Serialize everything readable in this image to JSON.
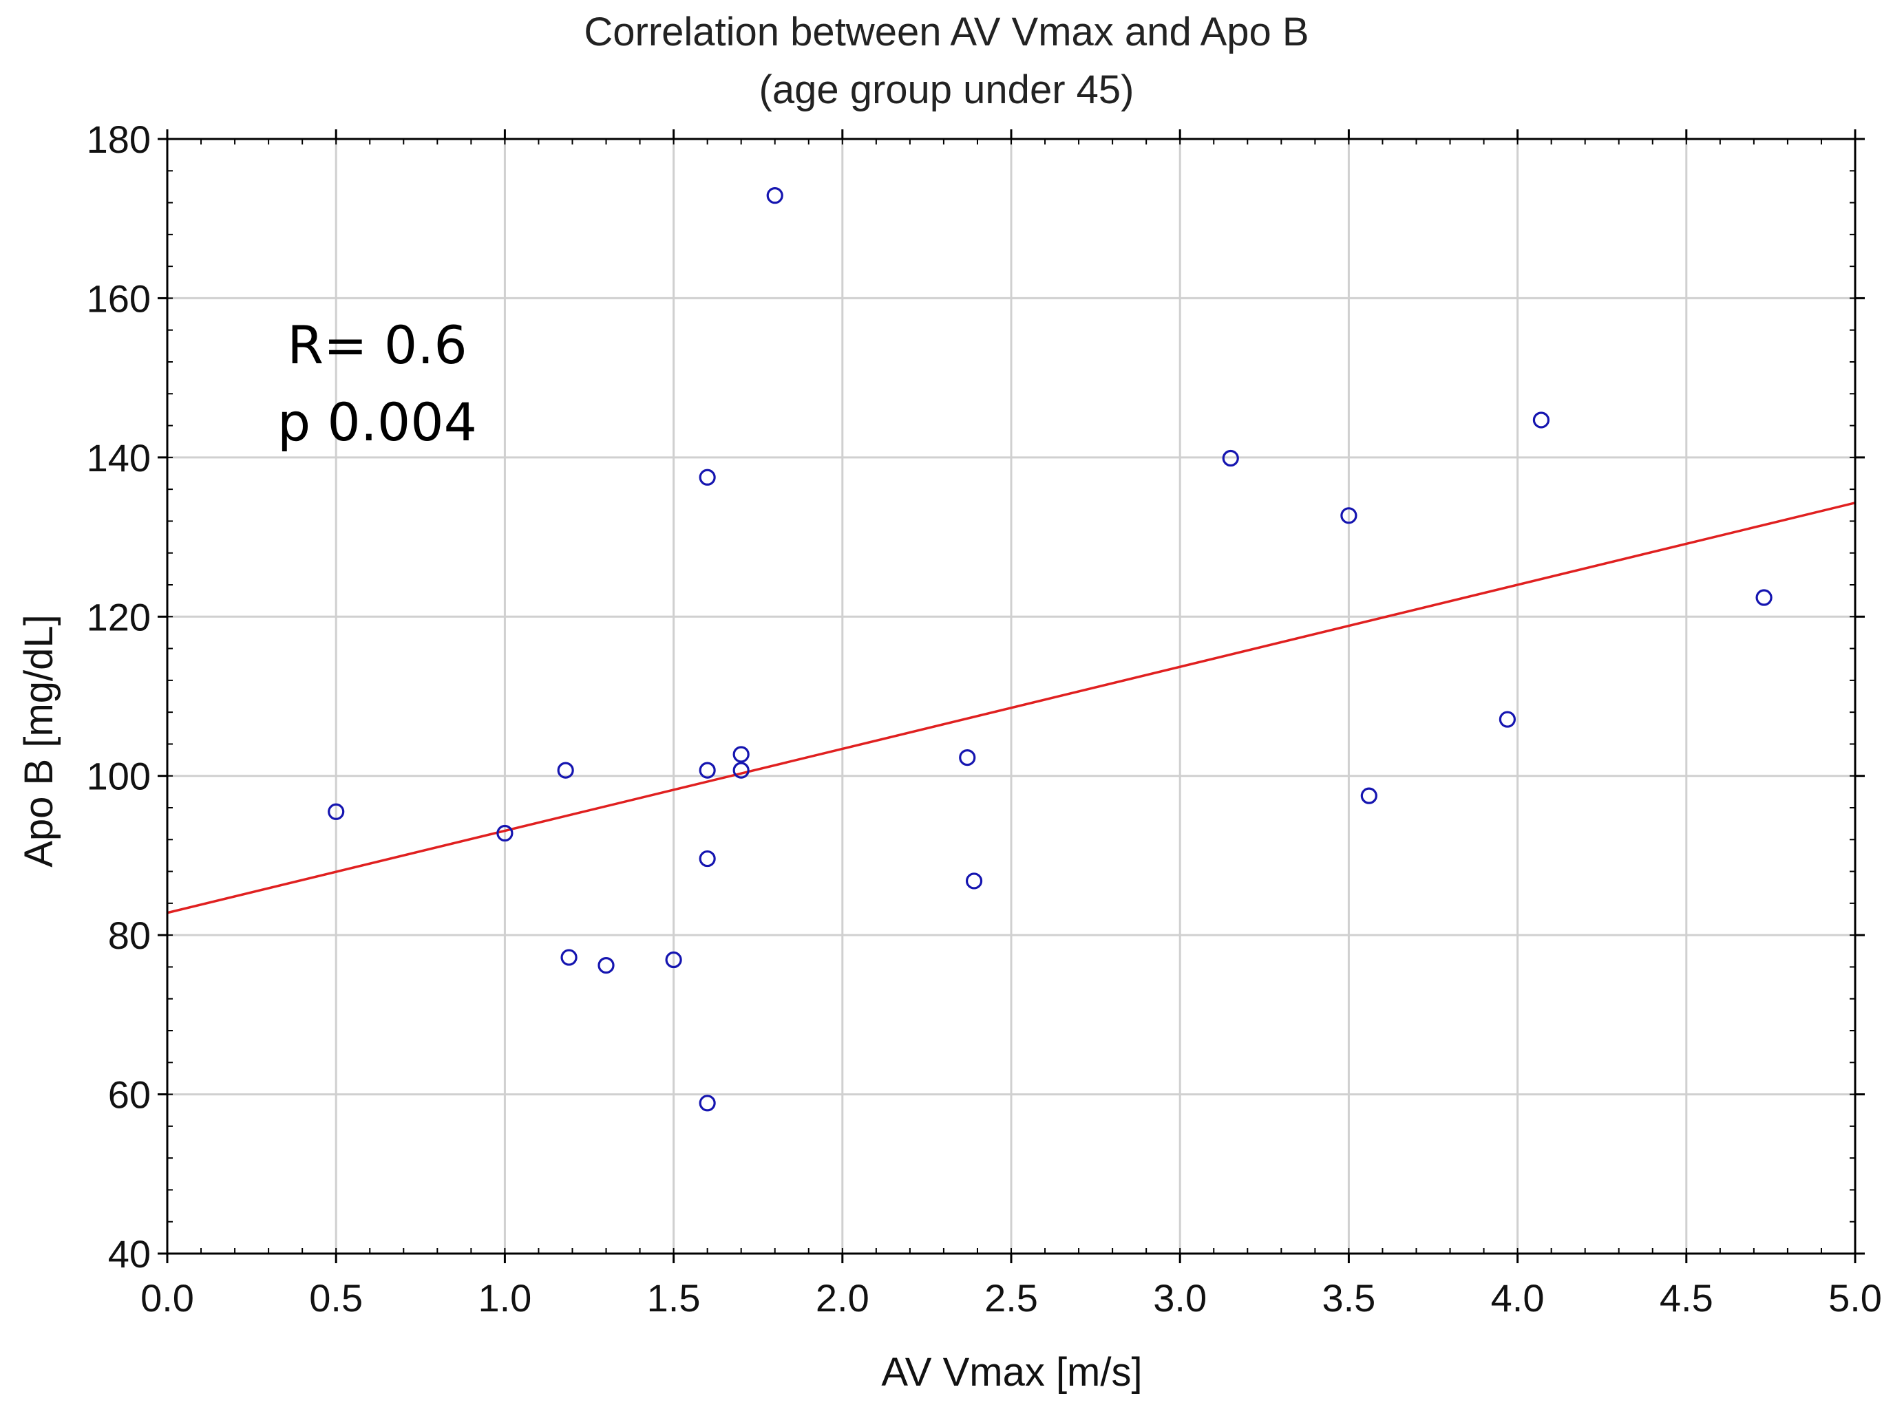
{
  "chart_data": {
    "type": "scatter",
    "title": "Correlation between AV Vmax and Apo B",
    "subtitle": "(age group under 45)",
    "xlabel": "AV Vmax [m/s]",
    "ylabel": "Apo B [mg/dL]",
    "xlim": [
      0.0,
      5.0
    ],
    "ylim": [
      40,
      180
    ],
    "xticks": [
      0.0,
      0.5,
      1.0,
      1.5,
      2.0,
      2.5,
      3.0,
      3.5,
      4.0,
      4.5,
      5.0
    ],
    "xtick_labels": [
      "0.0",
      "0.5",
      "1.0",
      "1.5",
      "2.0",
      "2.5",
      "3.0",
      "3.5",
      "4.0",
      "4.5",
      "5.0"
    ],
    "yticks": [
      40,
      60,
      80,
      100,
      120,
      140,
      160,
      180
    ],
    "ytick_labels": [
      "40",
      "60",
      "80",
      "100",
      "120",
      "140",
      "160",
      "180"
    ],
    "grid": true,
    "points": [
      {
        "x": 0.5,
        "y": 95.5
      },
      {
        "x": 1.0,
        "y": 92.8
      },
      {
        "x": 1.18,
        "y": 100.7
      },
      {
        "x": 1.19,
        "y": 77.2
      },
      {
        "x": 1.3,
        "y": 76.2
      },
      {
        "x": 1.5,
        "y": 76.9
      },
      {
        "x": 1.6,
        "y": 137.5
      },
      {
        "x": 1.6,
        "y": 100.7
      },
      {
        "x": 1.6,
        "y": 89.6
      },
      {
        "x": 1.6,
        "y": 58.9
      },
      {
        "x": 1.7,
        "y": 102.7
      },
      {
        "x": 1.7,
        "y": 100.7
      },
      {
        "x": 1.8,
        "y": 172.9
      },
      {
        "x": 2.37,
        "y": 102.3
      },
      {
        "x": 2.39,
        "y": 86.8
      },
      {
        "x": 3.15,
        "y": 139.9
      },
      {
        "x": 3.5,
        "y": 132.7
      },
      {
        "x": 3.56,
        "y": 97.5
      },
      {
        "x": 3.97,
        "y": 107.1
      },
      {
        "x": 4.07,
        "y": 144.7
      },
      {
        "x": 4.73,
        "y": 122.4
      }
    ],
    "regression": {
      "intercept": 82.8,
      "slope": 10.3
    },
    "annotations": [
      "R= 0.6",
      "p 0.004"
    ],
    "colors": {
      "points": "#1515b0",
      "regression": "#e02020",
      "grid": "#d0d0d0",
      "axis": "#000000"
    }
  }
}
